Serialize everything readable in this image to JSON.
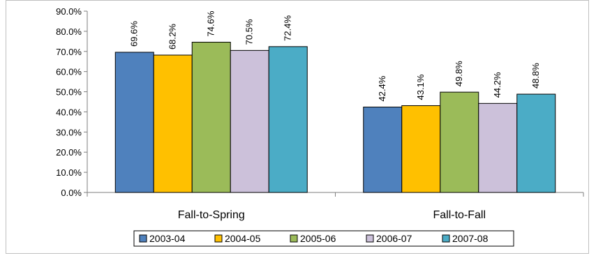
{
  "chart_data": {
    "type": "bar",
    "categories": [
      "Fall-to-Spring",
      "Fall-to-Fall"
    ],
    "series": [
      {
        "name": "2003-04",
        "values": [
          69.6,
          42.4
        ],
        "color": "#4F81BD"
      },
      {
        "name": "2004-05",
        "values": [
          68.2,
          43.1
        ],
        "color": "#FFC000"
      },
      {
        "name": "2005-06",
        "values": [
          74.6,
          49.8
        ],
        "color": "#9BBB59"
      },
      {
        "name": "2006-07",
        "values": [
          70.5,
          44.2
        ],
        "color": "#CCC1DA"
      },
      {
        "name": "2007-08",
        "values": [
          72.4,
          48.8
        ],
        "color": "#4BACC6"
      }
    ],
    "ylim": [
      0,
      90
    ],
    "yticks": [
      0,
      10,
      20,
      30,
      40,
      50,
      60,
      70,
      80,
      90
    ],
    "ytick_labels": [
      "0.0%",
      "10.0%",
      "20.0%",
      "30.0%",
      "40.0%",
      "50.0%",
      "60.0%",
      "70.0%",
      "80.0%",
      "90.0%"
    ],
    "data_labels": [
      [
        "69.6%",
        "42.4%"
      ],
      [
        "68.2%",
        "43.1%"
      ],
      [
        "74.6%",
        "49.8%"
      ],
      [
        "70.5%",
        "44.2%"
      ],
      [
        "72.4%",
        "48.8%"
      ]
    ],
    "grid": false,
    "legend": "bottom",
    "title": "",
    "xlabel": "",
    "ylabel": ""
  }
}
